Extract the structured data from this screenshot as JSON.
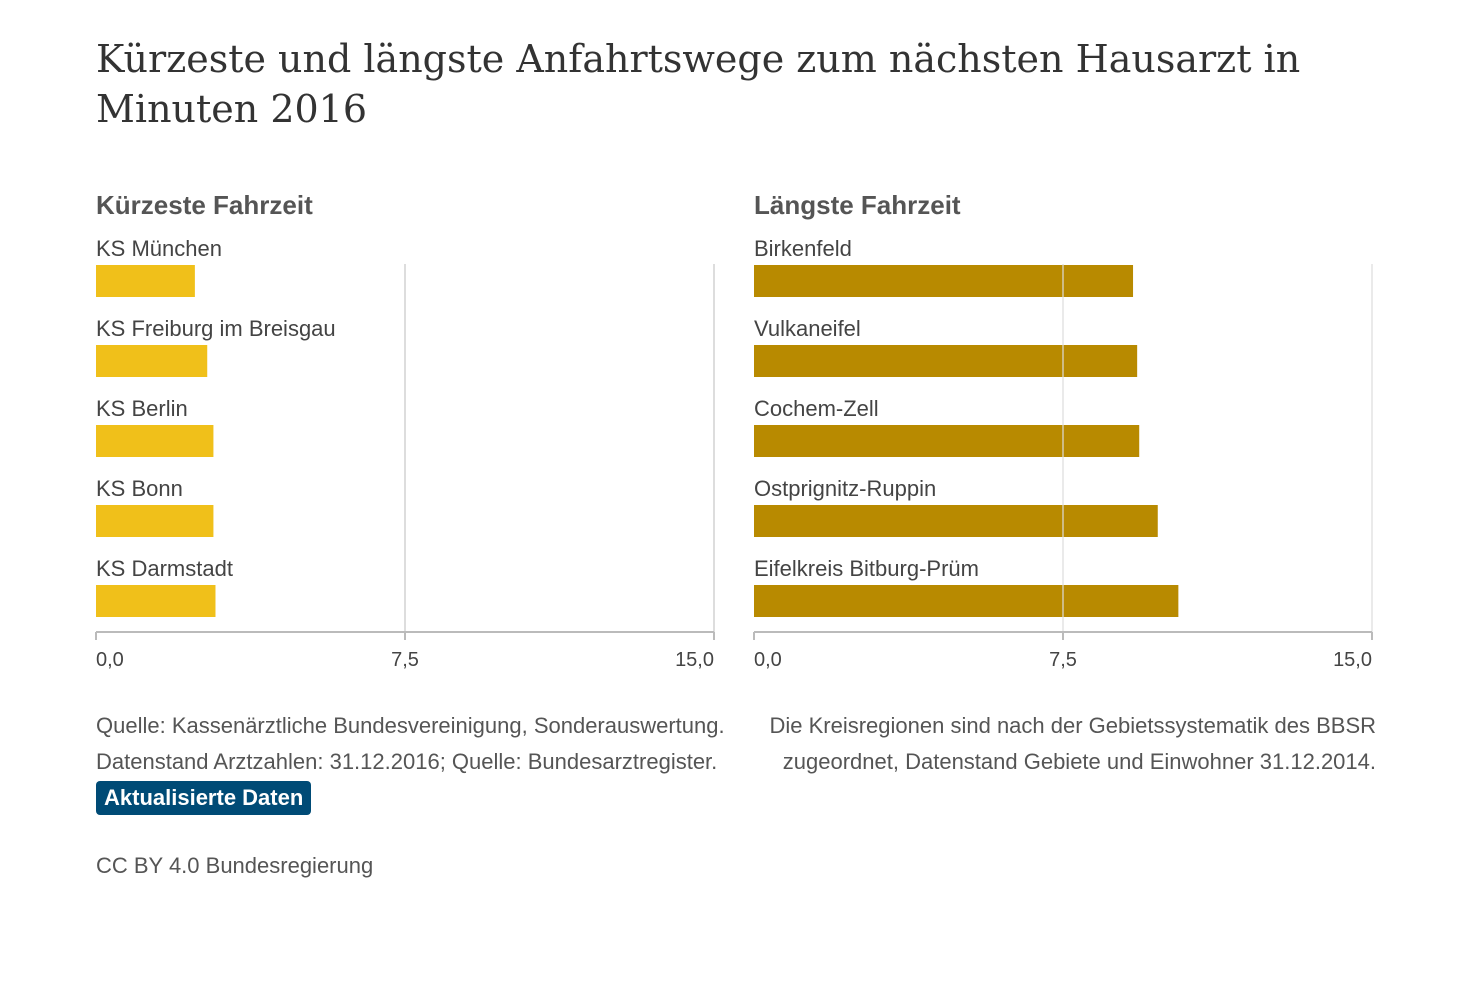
{
  "title": "Kürzeste und längste Anfahrtswege zum nächsten Hausarzt in Minuten 2016",
  "colors": {
    "short": "#f0c01a",
    "long": "#b88a00",
    "grid": "#dddddd",
    "axis": "#bbbbbb",
    "button": "#004b76"
  },
  "chart_data": [
    {
      "type": "bar",
      "orientation": "horizontal",
      "title": "Kürzeste Fahrzeit",
      "categories": [
        "KS München",
        "KS Freiburg im Breisgau",
        "KS Berlin",
        "KS Bonn",
        "KS Darmstadt"
      ],
      "values": [
        2.4,
        2.7,
        2.85,
        2.85,
        2.9
      ],
      "xlim": [
        0,
        15
      ],
      "ticks": [
        0,
        7.5,
        15
      ],
      "tick_labels": [
        "0,0",
        "7,5",
        "15,0"
      ],
      "grid": true
    },
    {
      "type": "bar",
      "orientation": "horizontal",
      "title": "Längste Fahrzeit",
      "categories": [
        "Birkenfeld",
        "Vulkaneifel",
        "Cochem-Zell",
        "Ostprignitz-Ruppin",
        "Eifelkreis Bitburg-Prüm"
      ],
      "values": [
        9.2,
        9.3,
        9.35,
        9.8,
        10.3
      ],
      "xlim": [
        0,
        15
      ],
      "ticks": [
        0,
        7.5,
        15
      ],
      "tick_labels": [
        "0,0",
        "7,5",
        "15,0"
      ],
      "grid": true
    }
  ],
  "source": {
    "line1": "Quelle: Kassenärztliche Bundesvereinigung, Sonderauswertung.",
    "line2": "Datenstand Arztzahlen: 31.12.2016; Quelle: Bundesarztregister."
  },
  "note": {
    "line1": "Die Kreisregionen sind nach der Gebietssystematik des BBSR",
    "line2": "zugeordnet, Datenstand Gebiete und Einwohner 31.12.2014."
  },
  "button_label": "Aktualisierte Daten",
  "license": "CC BY 4.0 Bundesregierung"
}
